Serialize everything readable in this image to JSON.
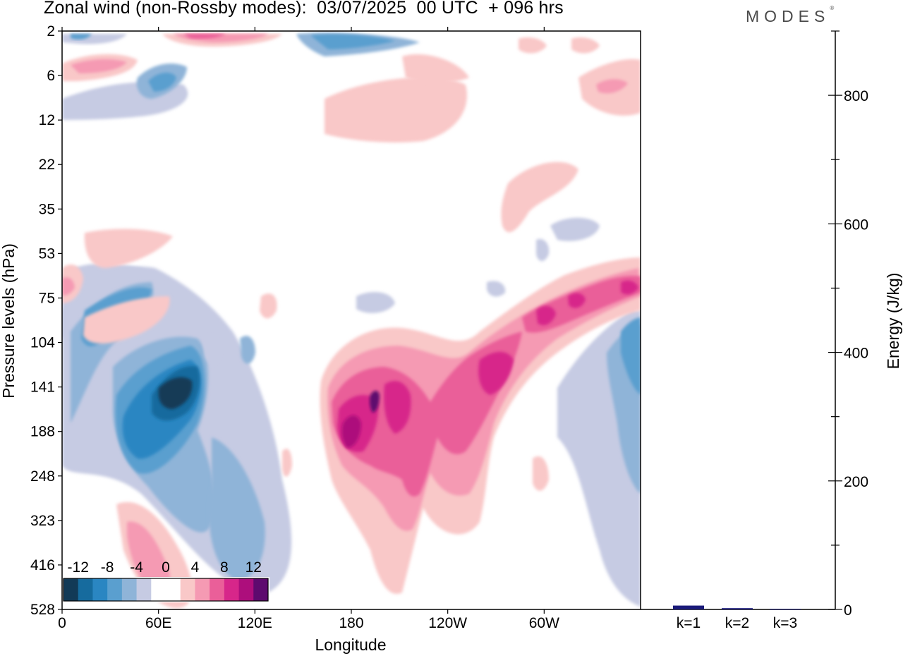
{
  "title": "Zonal wind (non-Rossby modes):  03/07/2025  00 UTC  + 096 hrs",
  "brand": "MODES",
  "brand_mark": "®",
  "chart_data": [
    {
      "type": "heatmap",
      "title": "Zonal wind (non-Rossby modes):  03/07/2025  00 UTC  + 096 hrs",
      "xlabel": "Longitude",
      "ylabel": "Pressure levels (hPa)",
      "x_tick_labels": [
        "0",
        "60E",
        "120E",
        "180",
        "120W",
        "60W"
      ],
      "y_tick_labels": [
        "2",
        "6",
        "12",
        "22",
        "35",
        "53",
        "75",
        "104",
        "141",
        "188",
        "248",
        "323",
        "416",
        "528"
      ],
      "colorbar": {
        "tick_labels": [
          "-12",
          "-8",
          "-4",
          "0",
          "4",
          "8",
          "12"
        ],
        "levels": [
          -14,
          -12,
          -10,
          -8,
          -6,
          -4,
          -2,
          0,
          2,
          4,
          6,
          8,
          10,
          12,
          14
        ],
        "colors": [
          "#123a57",
          "#166b9e",
          "#2a86c2",
          "#5a9fcf",
          "#8fb4d8",
          "#c6cbe3",
          "#ffffff",
          "#ffffff",
          "#f9c8c8",
          "#f59ab3",
          "#ea5f99",
          "#d7268a",
          "#ad0e7c",
          "#5e0a6e"
        ]
      },
      "features": [
        {
          "label": "westward jet core",
          "longitude_deg": 65,
          "pressure_hPa": 160,
          "value": -12
        },
        {
          "label": "eastward jet core",
          "longitude_deg": 180,
          "pressure_hPa": 170,
          "value": 10
        },
        {
          "label": "eastward tilted band",
          "longitude_deg": 330,
          "pressure_hPa": 75,
          "value": 8
        }
      ]
    },
    {
      "type": "bar",
      "categories": [
        "k=1",
        "k=2",
        "k=3"
      ],
      "values": [
        6,
        2,
        1
      ],
      "ylabel": "Energy (J/kg)",
      "y_tick_labels": [
        "0",
        "200",
        "400",
        "600",
        "800"
      ],
      "ylim": [
        0,
        900
      ],
      "bar_color": "#1a1a7a"
    }
  ]
}
